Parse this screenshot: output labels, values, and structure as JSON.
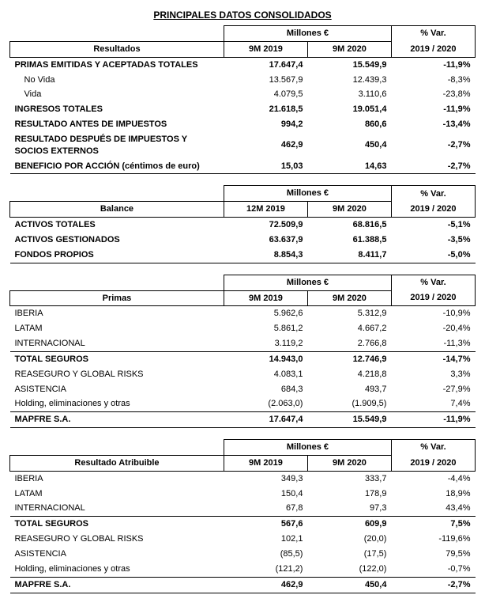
{
  "title": "PRINCIPALES DATOS CONSOLIDADOS",
  "common": {
    "millones_label": "Millones €",
    "var_label": "% Var.",
    "var_period": "2019 / 2020",
    "p1_9m": "9M 2019",
    "p2_9m": "9M 2020",
    "p1_12m": "12M 2019"
  },
  "tables": [
    {
      "header_label": "Resultados",
      "p1_key": "p1_9m",
      "rows": [
        {
          "label": "PRIMAS EMITIDAS Y ACEPTADAS TOTALES",
          "v1": "17.647,4",
          "v2": "15.549,9",
          "var": "-11,9%",
          "style": "bold"
        },
        {
          "label": "No Vida",
          "v1": "13.567,9",
          "v2": "12.439,3",
          "var": "-8,3%",
          "indent": true
        },
        {
          "label": "Vida",
          "v1": "4.079,5",
          "v2": "3.110,6",
          "var": "-23,8%",
          "indent": true
        },
        {
          "label": "INGRESOS TOTALES",
          "v1": "21.618,5",
          "v2": "19.051,4",
          "var": "-11,9%",
          "style": "bold"
        },
        {
          "label": "RESULTADO ANTES DE IMPUESTOS",
          "v1": "994,2",
          "v2": "860,6",
          "var": "-13,4%",
          "style": "bold"
        },
        {
          "label": "RESULTADO DESPUÉS DE IMPUESTOS Y SOCIOS EXTERNOS",
          "v1": "462,9",
          "v2": "450,4",
          "var": "-2,7%",
          "style": "bold"
        },
        {
          "label": "BENEFICIO POR ACCIÓN (céntimos de euro)",
          "v1": "15,03",
          "v2": "14,63",
          "var": "-2,7%",
          "style": "bold underline"
        }
      ]
    },
    {
      "header_label": "Balance",
      "p1_key": "p1_12m",
      "rows": [
        {
          "label": "ACTIVOS TOTALES",
          "v1": "72.509,9",
          "v2": "68.816,5",
          "var": "-5,1%",
          "style": "bold"
        },
        {
          "label": "ACTIVOS GESTIONADOS",
          "v1": "63.637,9",
          "v2": "61.388,5",
          "var": "-3,5%",
          "style": "bold"
        },
        {
          "label": "FONDOS PROPIOS",
          "v1": "8.854,3",
          "v2": "8.411,7",
          "var": "-5,0%",
          "style": "bold underline"
        }
      ]
    },
    {
      "header_label": "Primas",
      "p1_key": "p1_9m",
      "rows": [
        {
          "label": "IBERIA",
          "v1": "5.962,6",
          "v2": "5.312,9",
          "var": "-10,9%"
        },
        {
          "label": "LATAM",
          "v1": "5.861,2",
          "v2": "4.667,2",
          "var": "-20,4%"
        },
        {
          "label": "INTERNACIONAL",
          "v1": "3.119,2",
          "v2": "2.766,8",
          "var": "-11,3%"
        },
        {
          "label": "TOTAL SEGUROS",
          "v1": "14.943,0",
          "v2": "12.746,9",
          "var": "-14,7%",
          "style": "tot"
        },
        {
          "label": "REASEGURO Y GLOBAL RISKS",
          "v1": "4.083,1",
          "v2": "4.218,8",
          "var": "3,3%"
        },
        {
          "label": "ASISTENCIA",
          "v1": "684,3",
          "v2": "493,7",
          "var": "-27,9%"
        },
        {
          "label": "Holding, eliminaciones y otras",
          "v1": "(2.063,0)",
          "v2": "(1.909,5)",
          "var": "7,4%"
        },
        {
          "label": "MAPFRE S.A.",
          "v1": "17.647,4",
          "v2": "15.549,9",
          "var": "-11,9%",
          "style": "grand"
        }
      ]
    },
    {
      "header_label": "Resultado Atribuible",
      "p1_key": "p1_9m",
      "rows": [
        {
          "label": "IBERIA",
          "v1": "349,3",
          "v2": "333,7",
          "var": "-4,4%"
        },
        {
          "label": "LATAM",
          "v1": "150,4",
          "v2": "178,9",
          "var": "18,9%"
        },
        {
          "label": "INTERNACIONAL",
          "v1": "67,8",
          "v2": "97,3",
          "var": "43,4%"
        },
        {
          "label": "TOTAL SEGUROS",
          "v1": "567,6",
          "v2": "609,9",
          "var": "7,5%",
          "style": "tot"
        },
        {
          "label": "REASEGURO Y GLOBAL RISKS",
          "v1": "102,1",
          "v2": "(20,0)",
          "var": "-119,6%"
        },
        {
          "label": "ASISTENCIA",
          "v1": "(85,5)",
          "v2": "(17,5)",
          "var": "79,5%"
        },
        {
          "label": "Holding, eliminaciones y otras",
          "v1": "(121,2)",
          "v2": "(122,0)",
          "var": "-0,7%"
        },
        {
          "label": "MAPFRE S.A.",
          "v1": "462,9",
          "v2": "450,4",
          "var": "-2,7%",
          "style": "grand"
        }
      ]
    }
  ]
}
